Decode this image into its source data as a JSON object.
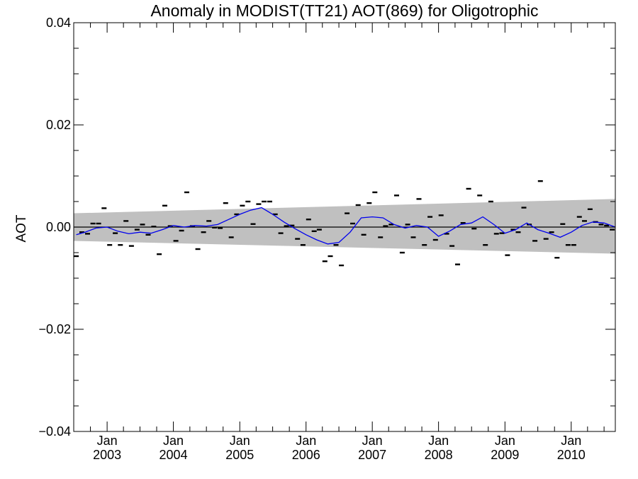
{
  "chart_data": {
    "type": "line",
    "title": "Anomaly in MODIST(TT21) AOT(869) for Oligotrophic",
    "xlabel": "",
    "ylabel": "AOT",
    "xlim": [
      "2002-07-01",
      "2010-09-01"
    ],
    "ylim": [
      -0.04,
      0.04
    ],
    "y_tick_labels": [
      "0.04",
      "0.02",
      "0.00",
      "−0.02",
      "−0.04"
    ],
    "x_tick_labels": [
      {
        "month": "Jan",
        "year": "2003",
        "date": "2003-01-01"
      },
      {
        "month": "Jan",
        "year": "2004",
        "date": "2004-01-01"
      },
      {
        "month": "Jan",
        "year": "2005",
        "date": "2005-01-01"
      },
      {
        "month": "Jan",
        "year": "2006",
        "date": "2006-01-01"
      },
      {
        "month": "Jan",
        "year": "2007",
        "date": "2007-01-01"
      },
      {
        "month": "Jan",
        "year": "2008",
        "date": "2008-01-01"
      },
      {
        "month": "Jan",
        "year": "2009",
        "date": "2009-01-01"
      },
      {
        "month": "Jan",
        "year": "2010",
        "date": "2010-01-01"
      }
    ],
    "grid": false,
    "zero_line": 0.0,
    "band": {
      "color": "#c0c0c0",
      "start": {
        "date": "2002-07-01",
        "upper": 0.0027,
        "lower": -0.0027
      },
      "end": {
        "date": "2010-09-01",
        "upper": 0.0055,
        "lower": -0.0052
      }
    },
    "series": [
      {
        "kind": "monthly_anomaly",
        "style": "dash",
        "color": "#000000",
        "points": [
          {
            "x": "2002-07-15",
            "y": -0.0057
          },
          {
            "x": "2002-08-15",
            "y": -0.001
          },
          {
            "x": "2002-09-15",
            "y": -0.0013
          },
          {
            "x": "2002-10-15",
            "y": 0.0007
          },
          {
            "x": "2002-11-15",
            "y": 0.0007
          },
          {
            "x": "2002-12-15",
            "y": 0.0037
          },
          {
            "x": "2003-01-15",
            "y": -0.0035
          },
          {
            "x": "2003-02-15",
            "y": -0.0012
          },
          {
            "x": "2003-03-15",
            "y": -0.0035
          },
          {
            "x": "2003-04-15",
            "y": 0.0012
          },
          {
            "x": "2003-05-15",
            "y": -0.0037
          },
          {
            "x": "2003-06-15",
            "y": -0.0005
          },
          {
            "x": "2003-07-15",
            "y": 0.0005
          },
          {
            "x": "2003-08-15",
            "y": -0.0015
          },
          {
            "x": "2003-09-15",
            "y": 0.0001
          },
          {
            "x": "2003-10-15",
            "y": -0.0053
          },
          {
            "x": "2003-11-15",
            "y": 0.0042
          },
          {
            "x": "2003-12-15",
            "y": 0.0002
          },
          {
            "x": "2004-01-15",
            "y": -0.0027
          },
          {
            "x": "2004-02-15",
            "y": -0.0007
          },
          {
            "x": "2004-03-15",
            "y": 0.0068
          },
          {
            "x": "2004-04-15",
            "y": 0.0002
          },
          {
            "x": "2004-05-15",
            "y": -0.0043
          },
          {
            "x": "2004-06-15",
            "y": -0.001
          },
          {
            "x": "2004-07-15",
            "y": 0.0012
          },
          {
            "x": "2004-08-15",
            "y": -0.0001
          },
          {
            "x": "2004-09-15",
            "y": -0.0002
          },
          {
            "x": "2004-10-15",
            "y": 0.0047
          },
          {
            "x": "2004-11-15",
            "y": -0.002
          },
          {
            "x": "2004-12-15",
            "y": 0.0025
          },
          {
            "x": "2005-01-15",
            "y": 0.0042
          },
          {
            "x": "2005-02-15",
            "y": 0.005
          },
          {
            "x": "2005-03-15",
            "y": 0.0006
          },
          {
            "x": "2005-04-15",
            "y": 0.0045
          },
          {
            "x": "2005-05-15",
            "y": 0.005
          },
          {
            "x": "2005-06-15",
            "y": 0.005
          },
          {
            "x": "2005-07-15",
            "y": 0.0025
          },
          {
            "x": "2005-08-15",
            "y": -0.0012
          },
          {
            "x": "2005-09-15",
            "y": 0.0002
          },
          {
            "x": "2005-10-15",
            "y": 0.0003
          },
          {
            "x": "2005-11-15",
            "y": -0.0023
          },
          {
            "x": "2005-12-15",
            "y": -0.0035
          },
          {
            "x": "2006-01-15",
            "y": 0.0015
          },
          {
            "x": "2006-02-15",
            "y": -0.0008
          },
          {
            "x": "2006-03-15",
            "y": -0.0005
          },
          {
            "x": "2006-04-15",
            "y": -0.0067
          },
          {
            "x": "2006-05-15",
            "y": -0.0057
          },
          {
            "x": "2006-06-15",
            "y": -0.0035
          },
          {
            "x": "2006-07-15",
            "y": -0.0075
          },
          {
            "x": "2006-08-15",
            "y": 0.0027
          },
          {
            "x": "2006-09-15",
            "y": 0.0007
          },
          {
            "x": "2006-10-15",
            "y": 0.0043
          },
          {
            "x": "2006-11-15",
            "y": -0.0015
          },
          {
            "x": "2006-12-15",
            "y": 0.0047
          },
          {
            "x": "2007-01-15",
            "y": 0.0068
          },
          {
            "x": "2007-02-15",
            "y": -0.002
          },
          {
            "x": "2007-03-15",
            "y": 0.0002
          },
          {
            "x": "2007-04-15",
            "y": 0.0005
          },
          {
            "x": "2007-05-15",
            "y": 0.0062
          },
          {
            "x": "2007-06-15",
            "y": -0.005
          },
          {
            "x": "2007-07-15",
            "y": 0.0005
          },
          {
            "x": "2007-08-15",
            "y": -0.002
          },
          {
            "x": "2007-09-15",
            "y": 0.0055
          },
          {
            "x": "2007-10-15",
            "y": -0.0035
          },
          {
            "x": "2007-11-15",
            "y": 0.002
          },
          {
            "x": "2007-12-15",
            "y": -0.0025
          },
          {
            "x": "2008-01-15",
            "y": 0.0023
          },
          {
            "x": "2008-02-15",
            "y": -0.0013
          },
          {
            "x": "2008-03-15",
            "y": -0.0037
          },
          {
            "x": "2008-04-15",
            "y": -0.0073
          },
          {
            "x": "2008-05-15",
            "y": 0.0008
          },
          {
            "x": "2008-06-15",
            "y": 0.0075
          },
          {
            "x": "2008-07-15",
            "y": -0.0003
          },
          {
            "x": "2008-08-15",
            "y": 0.0062
          },
          {
            "x": "2008-09-15",
            "y": -0.0035
          },
          {
            "x": "2008-10-15",
            "y": 0.005
          },
          {
            "x": "2008-11-15",
            "y": -0.0013
          },
          {
            "x": "2008-12-15",
            "y": -0.0012
          },
          {
            "x": "2009-01-15",
            "y": -0.0055
          },
          {
            "x": "2009-02-15",
            "y": -0.0005
          },
          {
            "x": "2009-03-15",
            "y": -0.001
          },
          {
            "x": "2009-04-15",
            "y": 0.0038
          },
          {
            "x": "2009-05-15",
            "y": 0.0005
          },
          {
            "x": "2009-06-15",
            "y": -0.0027
          },
          {
            "x": "2009-07-15",
            "y": 0.009
          },
          {
            "x": "2009-08-15",
            "y": -0.0023
          },
          {
            "x": "2009-09-15",
            "y": -0.001
          },
          {
            "x": "2009-10-15",
            "y": -0.006
          },
          {
            "x": "2009-11-15",
            "y": 0.0006
          },
          {
            "x": "2009-12-15",
            "y": -0.0035
          },
          {
            "x": "2010-01-15",
            "y": -0.0035
          },
          {
            "x": "2010-02-15",
            "y": 0.002
          },
          {
            "x": "2010-03-15",
            "y": 0.0012
          },
          {
            "x": "2010-04-15",
            "y": 0.0035
          },
          {
            "x": "2010-05-15",
            "y": 0.001
          },
          {
            "x": "2010-06-15",
            "y": 0.0005
          },
          {
            "x": "2010-07-15",
            "y": 0.0003
          },
          {
            "x": "2010-08-15",
            "y": -0.0005
          }
        ]
      },
      {
        "kind": "smoothed",
        "style": "line",
        "color": "#0000ee",
        "points": [
          {
            "x": "2002-07-15",
            "y": -0.0015
          },
          {
            "x": "2002-09-01",
            "y": -0.001
          },
          {
            "x": "2002-11-01",
            "y": -0.0002
          },
          {
            "x": "2003-01-01",
            "y": 0.0
          },
          {
            "x": "2003-03-01",
            "y": -0.0008
          },
          {
            "x": "2003-05-01",
            "y": -0.0013
          },
          {
            "x": "2003-07-01",
            "y": -0.001
          },
          {
            "x": "2003-09-01",
            "y": -0.0012
          },
          {
            "x": "2003-11-01",
            "y": -0.0005
          },
          {
            "x": "2004-01-01",
            "y": 0.0003
          },
          {
            "x": "2004-03-01",
            "y": 0.0
          },
          {
            "x": "2004-05-01",
            "y": 0.0003
          },
          {
            "x": "2004-07-01",
            "y": 0.0002
          },
          {
            "x": "2004-09-01",
            "y": 0.0005
          },
          {
            "x": "2004-11-01",
            "y": 0.0015
          },
          {
            "x": "2005-01-01",
            "y": 0.0025
          },
          {
            "x": "2005-03-01",
            "y": 0.0033
          },
          {
            "x": "2005-05-01",
            "y": 0.0038
          },
          {
            "x": "2005-07-01",
            "y": 0.0025
          },
          {
            "x": "2005-09-01",
            "y": 0.001
          },
          {
            "x": "2005-11-01",
            "y": -0.0003
          },
          {
            "x": "2006-01-01",
            "y": -0.0015
          },
          {
            "x": "2006-03-01",
            "y": -0.0025
          },
          {
            "x": "2006-05-01",
            "y": -0.0033
          },
          {
            "x": "2006-07-01",
            "y": -0.003
          },
          {
            "x": "2006-09-01",
            "y": -0.001
          },
          {
            "x": "2006-11-01",
            "y": 0.0018
          },
          {
            "x": "2007-01-01",
            "y": 0.002
          },
          {
            "x": "2007-03-01",
            "y": 0.0018
          },
          {
            "x": "2007-05-01",
            "y": 0.0005
          },
          {
            "x": "2007-07-01",
            "y": -0.0002
          },
          {
            "x": "2007-09-01",
            "y": 0.0003
          },
          {
            "x": "2007-11-01",
            "y": 0.0
          },
          {
            "x": "2008-01-01",
            "y": -0.0018
          },
          {
            "x": "2008-03-01",
            "y": -0.0008
          },
          {
            "x": "2008-05-01",
            "y": 0.0005
          },
          {
            "x": "2008-07-01",
            "y": 0.0008
          },
          {
            "x": "2008-09-01",
            "y": 0.002
          },
          {
            "x": "2008-11-01",
            "y": 0.0005
          },
          {
            "x": "2009-01-01",
            "y": -0.0012
          },
          {
            "x": "2009-03-01",
            "y": -0.0005
          },
          {
            "x": "2009-05-01",
            "y": 0.0008
          },
          {
            "x": "2009-07-01",
            "y": -0.0005
          },
          {
            "x": "2009-09-01",
            "y": -0.0012
          },
          {
            "x": "2009-11-01",
            "y": -0.002
          },
          {
            "x": "2010-01-01",
            "y": -0.001
          },
          {
            "x": "2010-03-01",
            "y": 0.0003
          },
          {
            "x": "2010-05-01",
            "y": 0.001
          },
          {
            "x": "2010-07-01",
            "y": 0.0008
          },
          {
            "x": "2010-09-01",
            "y": 0.0
          }
        ]
      }
    ]
  }
}
